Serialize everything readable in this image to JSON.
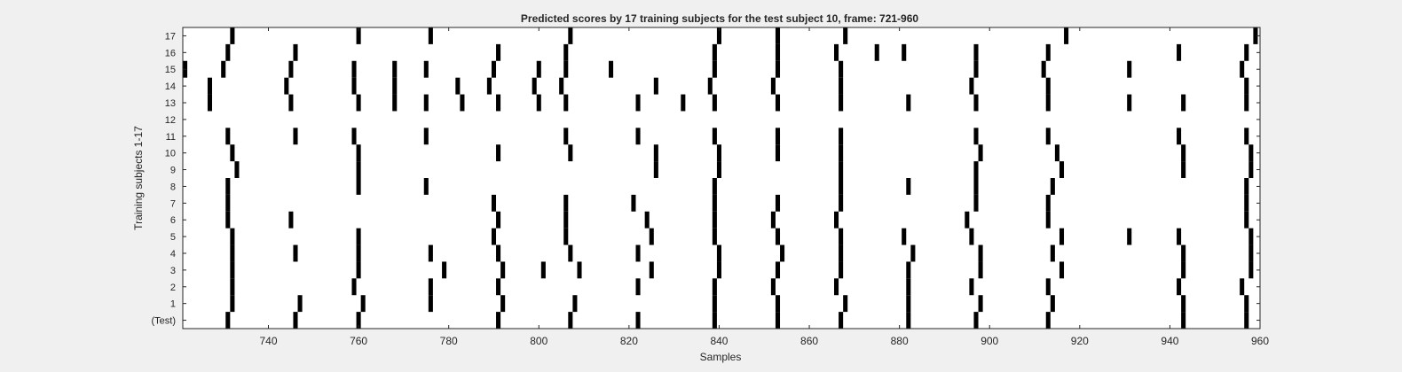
{
  "chart_data": {
    "type": "scatter",
    "title": "Predicted scores by 17 training subjects for the test subject 10, frame: 721-960",
    "xlabel": "Samples",
    "ylabel": "Training subjects 1-17",
    "xlim": [
      721,
      960
    ],
    "ylim": [
      -0.5,
      17.5
    ],
    "xticks": [
      740,
      760,
      780,
      800,
      820,
      840,
      860,
      880,
      900,
      920,
      940,
      960
    ],
    "yticklabels": [
      "(Test)",
      "1",
      "2",
      "3",
      "4",
      "5",
      "6",
      "7",
      "8",
      "9",
      "10",
      "11",
      "12",
      "13",
      "14",
      "15",
      "16",
      "17"
    ],
    "grid": false,
    "legend": "none",
    "mark_color": "#000000",
    "rows": [
      {
        "label": "(Test)",
        "x": [
          731,
          746,
          760,
          791,
          807,
          822,
          839,
          853,
          867,
          882,
          897,
          913,
          943,
          957
        ]
      },
      {
        "label": "1",
        "x": [
          732,
          747,
          761,
          776,
          792,
          808,
          839,
          853,
          868,
          882,
          898,
          914,
          943,
          957
        ]
      },
      {
        "label": "2",
        "x": [
          732,
          759,
          776,
          791,
          822,
          839,
          852,
          866,
          882,
          896,
          913,
          942,
          956
        ]
      },
      {
        "label": "3",
        "x": [
          732,
          760,
          779,
          792,
          801,
          809,
          825,
          840,
          853,
          867,
          882,
          898,
          916,
          943,
          958
        ]
      },
      {
        "label": "4",
        "x": [
          732,
          746,
          760,
          776,
          791,
          807,
          822,
          840,
          854,
          867,
          883,
          898,
          914,
          943,
          958
        ]
      },
      {
        "label": "5",
        "x": [
          732,
          760,
          790,
          806,
          825,
          839,
          853,
          867,
          881,
          896,
          916,
          931,
          942,
          958
        ]
      },
      {
        "label": "6",
        "x": [
          731,
          745,
          791,
          806,
          824,
          839,
          852,
          866,
          895,
          913,
          957
        ]
      },
      {
        "label": "7",
        "x": [
          731,
          790,
          806,
          821,
          839,
          853,
          867,
          897,
          913,
          957
        ]
      },
      {
        "label": "8",
        "x": [
          731,
          760,
          775,
          839,
          867,
          882,
          897,
          914,
          957
        ]
      },
      {
        "label": "9",
        "x": [
          733,
          760,
          826,
          840,
          867,
          897,
          916,
          943,
          958
        ]
      },
      {
        "label": "10",
        "x": [
          732,
          760,
          791,
          807,
          826,
          840,
          853,
          867,
          898,
          915,
          943,
          958
        ]
      },
      {
        "label": "11",
        "x": [
          731,
          746,
          759,
          775,
          806,
          822,
          839,
          853,
          867,
          897,
          913,
          942,
          957
        ]
      },
      {
        "label": "12",
        "x": []
      },
      {
        "label": "13",
        "x": [
          727,
          745,
          760,
          768,
          775,
          783,
          791,
          800,
          806,
          822,
          832,
          839,
          853,
          867,
          882,
          897,
          913,
          931,
          943,
          957
        ]
      },
      {
        "label": "14",
        "x": [
          727,
          744,
          759,
          768,
          782,
          789,
          799,
          805,
          826,
          838,
          852,
          867,
          896,
          913,
          957
        ]
      },
      {
        "label": "15",
        "x": [
          721,
          730,
          745,
          759,
          768,
          775,
          790,
          800,
          806,
          816,
          839,
          853,
          867,
          897,
          912,
          931,
          956
        ]
      },
      {
        "label": "16",
        "x": [
          731,
          746,
          791,
          806,
          839,
          853,
          866,
          875,
          881,
          897,
          913,
          942,
          957
        ]
      },
      {
        "label": "17",
        "x": [
          732,
          760,
          776,
          807,
          840,
          853,
          868,
          917,
          959
        ]
      }
    ]
  }
}
